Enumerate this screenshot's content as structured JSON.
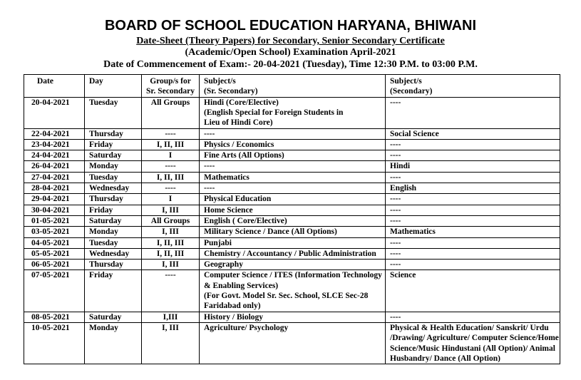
{
  "title": "BOARD OF SCHOOL EDUCATION HARYANA, BHIWANI",
  "subtitle1": "Date-Sheet (Theory Papers) for Secondary, Senior Secondary Certificate",
  "subtitle2": "(Academic/Open School) Examination April-2021",
  "subtitle3": "Date of Commencement of Exam:- 20-04-2021 (Tuesday), Time 12:30 P.M. to  03:00 P.M.",
  "headers": [
    "Date",
    "Day",
    "Group/s for Sr. Secondary",
    "Subject/s\n(Sr. Secondary)",
    "Subject/s\n(Secondary)"
  ],
  "rows": [
    [
      "20-04-2021",
      "Tuesday",
      "All Groups",
      "Hindi (Core/Elective)\n(English Special for Foreign Students in Lieu of Hindi Core)",
      "----"
    ],
    [
      "22-04-2021",
      "Thursday",
      "----",
      "----",
      "Social Science"
    ],
    [
      "23-04-2021",
      "Friday",
      "I, II, III",
      "Physics / Economics",
      "----"
    ],
    [
      "24-04-2021",
      "Saturday",
      "I",
      "Fine Arts (All Options)",
      "----"
    ],
    [
      "26-04-2021",
      "Monday",
      "----",
      "----",
      "Hindi"
    ],
    [
      "27-04-2021",
      "Tuesday",
      "I, II, III",
      "Mathematics",
      "----"
    ],
    [
      "28-04-2021",
      "Wednesday",
      "----",
      "----",
      "English"
    ],
    [
      "29-04-2021",
      "Thursday",
      "I",
      "Physical Education",
      "----"
    ],
    [
      "30-04-2021",
      "Friday",
      "I, III",
      "Home Science",
      "----"
    ],
    [
      "01-05-2021",
      "Saturday",
      "All Groups",
      "English ( Core/Elective)",
      "----"
    ],
    [
      "03-05-2021",
      "Monday",
      "I, III",
      "Military Science / Dance (All Options)",
      "Mathematics"
    ],
    [
      "04-05-2021",
      "Tuesday",
      "I, II, III",
      "Punjabi",
      "----"
    ],
    [
      "05-05-2021",
      "Wednesday",
      "I, II, III",
      "Chemistry / Accountancy / Public Administration",
      "----"
    ],
    [
      "06-05-2021",
      "Thursday",
      "I, III",
      "Geography",
      "----"
    ],
    [
      "07-05-2021",
      "Friday",
      "----",
      "Computer Science / ITES (Information Technology & Enabling Services)\n(For Govt. Model Sr. Sec. School, SLCE Sec-28 Faridabad only)",
      "Science"
    ],
    [
      "08-05-2021",
      "Saturday",
      "I,III",
      "History / Biology",
      "----"
    ],
    [
      "10-05-2021",
      "Monday",
      "I, III",
      "Agriculture/ Psychology",
      "Physical & Health Education/ Sanskrit/ Urdu /Drawing/ Agriculture/ Computer Science/Home Science/Music Hindustani (All Option)/ Animal Husbandry/  Dance (All Option)"
    ]
  ]
}
